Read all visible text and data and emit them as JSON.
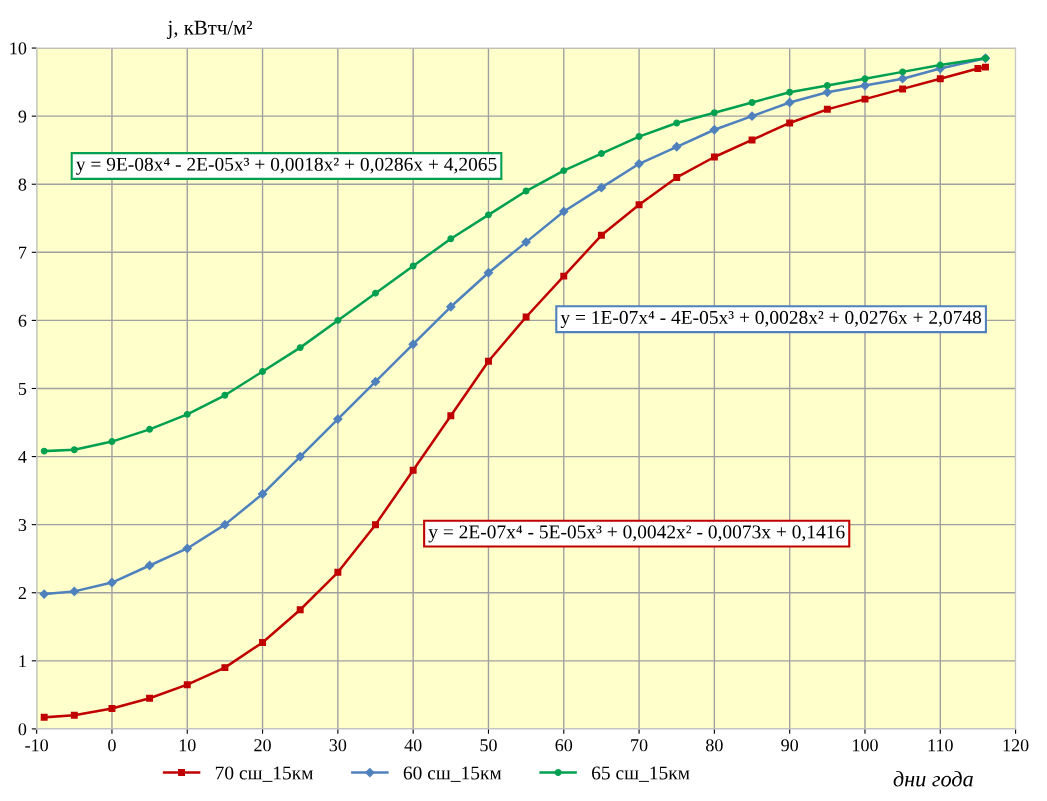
{
  "chart_data": {
    "type": "line",
    "xlabel": "дни года",
    "ylabel": "j, кВтч/м²",
    "xlim": [
      -10,
      120
    ],
    "xticks": [
      -10,
      0,
      10,
      20,
      30,
      40,
      50,
      60,
      70,
      80,
      90,
      100,
      110,
      120
    ],
    "ylim": [
      0,
      10
    ],
    "yticks": [
      0,
      1,
      2,
      3,
      4,
      5,
      6,
      7,
      8,
      9,
      10
    ],
    "grid": true,
    "legend": "bottom",
    "series": [
      {
        "name": "70 сш_15км",
        "color": "#c00000",
        "marker": "square",
        "x": [
          -9,
          -5,
          0,
          5,
          10,
          15,
          20,
          25,
          30,
          35,
          40,
          45,
          50,
          55,
          60,
          65,
          70,
          75,
          80,
          85,
          90,
          95,
          100,
          105,
          110,
          115,
          116
        ],
        "values": [
          0.17,
          0.2,
          0.3,
          0.45,
          0.65,
          0.9,
          1.27,
          1.75,
          2.3,
          3.0,
          3.8,
          4.6,
          5.4,
          6.05,
          6.65,
          7.25,
          7.7,
          8.1,
          8.4,
          8.65,
          8.9,
          9.1,
          9.25,
          9.4,
          9.55,
          9.7,
          9.72
        ]
      },
      {
        "name": "60 сш_15км",
        "color": "#4f81bd",
        "marker": "diamond",
        "x": [
          -9,
          -5,
          0,
          5,
          10,
          15,
          20,
          25,
          30,
          35,
          40,
          45,
          50,
          55,
          60,
          65,
          70,
          75,
          80,
          85,
          90,
          95,
          100,
          105,
          110,
          116
        ],
        "values": [
          1.98,
          2.02,
          2.15,
          2.4,
          2.65,
          3.0,
          3.45,
          4.0,
          4.55,
          5.1,
          5.65,
          6.2,
          6.7,
          7.15,
          7.6,
          7.95,
          8.3,
          8.55,
          8.8,
          9.0,
          9.2,
          9.35,
          9.45,
          9.55,
          9.7,
          9.85
        ]
      },
      {
        "name": "65 сш_15км",
        "color": "#00a050",
        "marker": "circle",
        "x": [
          -9,
          -5,
          0,
          5,
          10,
          15,
          20,
          25,
          30,
          35,
          40,
          45,
          50,
          55,
          60,
          65,
          70,
          75,
          80,
          85,
          90,
          95,
          100,
          105,
          110,
          116
        ],
        "values": [
          4.08,
          4.1,
          4.22,
          4.4,
          4.62,
          4.9,
          5.25,
          5.6,
          6.0,
          6.4,
          6.8,
          7.2,
          7.55,
          7.9,
          8.2,
          8.45,
          8.7,
          8.9,
          9.05,
          9.2,
          9.35,
          9.45,
          9.55,
          9.65,
          9.75,
          9.85
        ]
      }
    ],
    "annotations": [
      "y = 2E-07x⁴ - 5E-05x³ + 0,0042x² - 0,0073x + 0,1416",
      "y = 1E-07x⁴ - 4E-05x³ + 0,0028x² + 0,0276x + 2,0748",
      "y = 9E-08x⁴ - 2E-05x³ + 0,0018x² + 0,0286x + 4,2065"
    ]
  }
}
